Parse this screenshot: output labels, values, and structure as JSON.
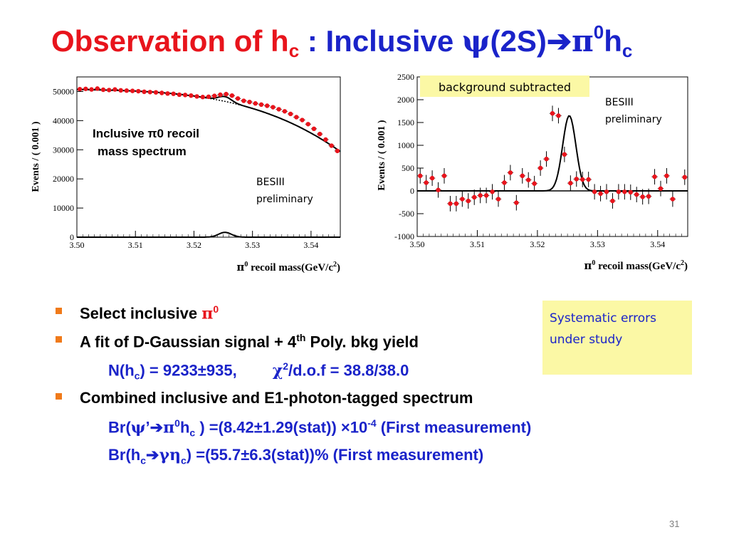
{
  "title": {
    "part1": "Observation of h",
    "part1_sub": "c",
    "part2": " : Inclusive ",
    "psi": "ψ",
    "part3": "(2S)",
    "arrow": "➔",
    "pi": "π",
    "pi_sup": "0",
    "h": "h",
    "h_sub": "c"
  },
  "chart_data": [
    {
      "type": "scatter",
      "ylabel": "Events / ( 0.001 )",
      "xlabel": "π0 recoil mass(GeV/c2)",
      "xlim": [
        3.5,
        3.545
      ],
      "ylim": [
        0,
        55000
      ],
      "xticks": [
        "3.50",
        "3.51",
        "3.52",
        "3.53",
        "3.54"
      ],
      "yticks": [
        "0",
        "10000",
        "20000",
        "30000",
        "40000",
        "50000"
      ],
      "annotation_line1": "Inclusive π0 recoil",
      "annotation_line2": "mass spectrum",
      "label_line1": "BESIII",
      "label_line2": "preliminary",
      "x": [
        3.5005,
        3.5015,
        3.5025,
        3.5035,
        3.5045,
        3.5055,
        3.5065,
        3.5075,
        3.5085,
        3.5095,
        3.5105,
        3.5115,
        3.5125,
        3.5135,
        3.5145,
        3.5155,
        3.5165,
        3.5175,
        3.5185,
        3.5195,
        3.5205,
        3.5215,
        3.5225,
        3.5235,
        3.5245,
        3.5255,
        3.5265,
        3.5275,
        3.5285,
        3.5295,
        3.5305,
        3.5315,
        3.5325,
        3.5335,
        3.5345,
        3.5355,
        3.5365,
        3.5375,
        3.5385,
        3.5395,
        3.5405,
        3.5415,
        3.5425,
        3.5435,
        3.5445
      ],
      "y": [
        50800,
        50900,
        50700,
        51000,
        50600,
        50500,
        50700,
        50400,
        50300,
        50200,
        50100,
        49900,
        49800,
        49700,
        49500,
        49300,
        49200,
        48900,
        48800,
        48600,
        48300,
        48100,
        48200,
        48500,
        48900,
        49100,
        48600,
        47600,
        46800,
        46400,
        45900,
        45500,
        45100,
        44600,
        43900,
        43200,
        42300,
        41200,
        40200,
        38800,
        37200,
        35400,
        33500,
        31400,
        29600
      ]
    },
    {
      "type": "scatter",
      "ylabel": "Events / ( 0.001 )",
      "xlabel": "π0 recoil mass(GeV/c2)",
      "xlim": [
        3.5,
        3.545
      ],
      "ylim": [
        -1000,
        2500
      ],
      "xticks": [
        "3.50",
        "3.51",
        "3.52",
        "3.53",
        "3.54"
      ],
      "yticks": [
        "-1000",
        "-500",
        "0",
        "500",
        "1000",
        "1500",
        "2000",
        "2500"
      ],
      "tag": "background subtracted",
      "label_line1": "BESIII",
      "label_line2": "preliminary",
      "x": [
        3.5005,
        3.5015,
        3.5025,
        3.5035,
        3.5045,
        3.5055,
        3.5065,
        3.5075,
        3.5085,
        3.5095,
        3.5105,
        3.5115,
        3.5125,
        3.5135,
        3.5145,
        3.5155,
        3.5165,
        3.5175,
        3.5185,
        3.5195,
        3.5205,
        3.5215,
        3.5225,
        3.5235,
        3.5245,
        3.5255,
        3.5265,
        3.5275,
        3.5285,
        3.5295,
        3.5305,
        3.5315,
        3.5325,
        3.5335,
        3.5345,
        3.5355,
        3.5365,
        3.5375,
        3.5385,
        3.5395,
        3.5405,
        3.5415,
        3.5425,
        3.5445
      ],
      "y": [
        330,
        180,
        280,
        20,
        330,
        -280,
        -280,
        -180,
        -220,
        -140,
        -100,
        -100,
        -20,
        -180,
        180,
        400,
        -260,
        330,
        240,
        160,
        500,
        700,
        1700,
        1650,
        800,
        170,
        260,
        250,
        250,
        -20,
        -60,
        -20,
        -220,
        -20,
        -20,
        -30,
        -80,
        -130,
        -120,
        310,
        50,
        330,
        -180,
        300
      ]
    }
  ],
  "bullets": {
    "b1_text": "Select inclusive ",
    "b1_pi": "π",
    "b1_sup": "0",
    "b2_text": "A fit of D-Gaussian signal + 4",
    "b2_sup": "th",
    "b2_rest": " Poly. bkg yield",
    "l3_a": "N(h",
    "l3_sub": "c",
    "l3_b": ") = 9233",
    "l3_pm": "±",
    "l3_c": "935,",
    "l3_chi": "χ",
    "l3_sup": "2",
    "l3_d": "/d.o.f  = 38.8/38.0",
    "b4_text": "Combined inclusive and E1-photon-tagged spectrum",
    "l5_a": "Br(",
    "l5_psi": "ψ",
    "l5_prime": "’",
    "l5_arrow": "➔",
    "l5_pi": "π",
    "l5_sup0": "0",
    "l5_h": "h",
    "l5_sub": "c",
    "l5_b": " ) =(8.42",
    "l5_pm": "±",
    "l5_c": "1.29(stat)) ",
    "l5_times": "×",
    "l5_d": "10",
    "l5_exp": "-4",
    "l5_e": "  (First measurement)",
    "l6_a": "Br(h",
    "l6_sub": "c",
    "l6_arrow": "➔",
    "l6_gamma": "γ",
    "l6_eta": "η",
    "l6_sub2": "c",
    "l6_b": ") =(55.7",
    "l6_pm": "±",
    "l6_c": "6.3(stat))%   (First measurement)"
  },
  "systematics": {
    "line1": "Systematic errors",
    "line2": "under study"
  },
  "page_number": "31",
  "colors": {
    "title_red": "#e8141c",
    "title_blue": "#1a23c9",
    "marker_red": "#e8141c",
    "bullet_orange": "#f07a1a",
    "box_yellow": "#fbf8a5"
  }
}
